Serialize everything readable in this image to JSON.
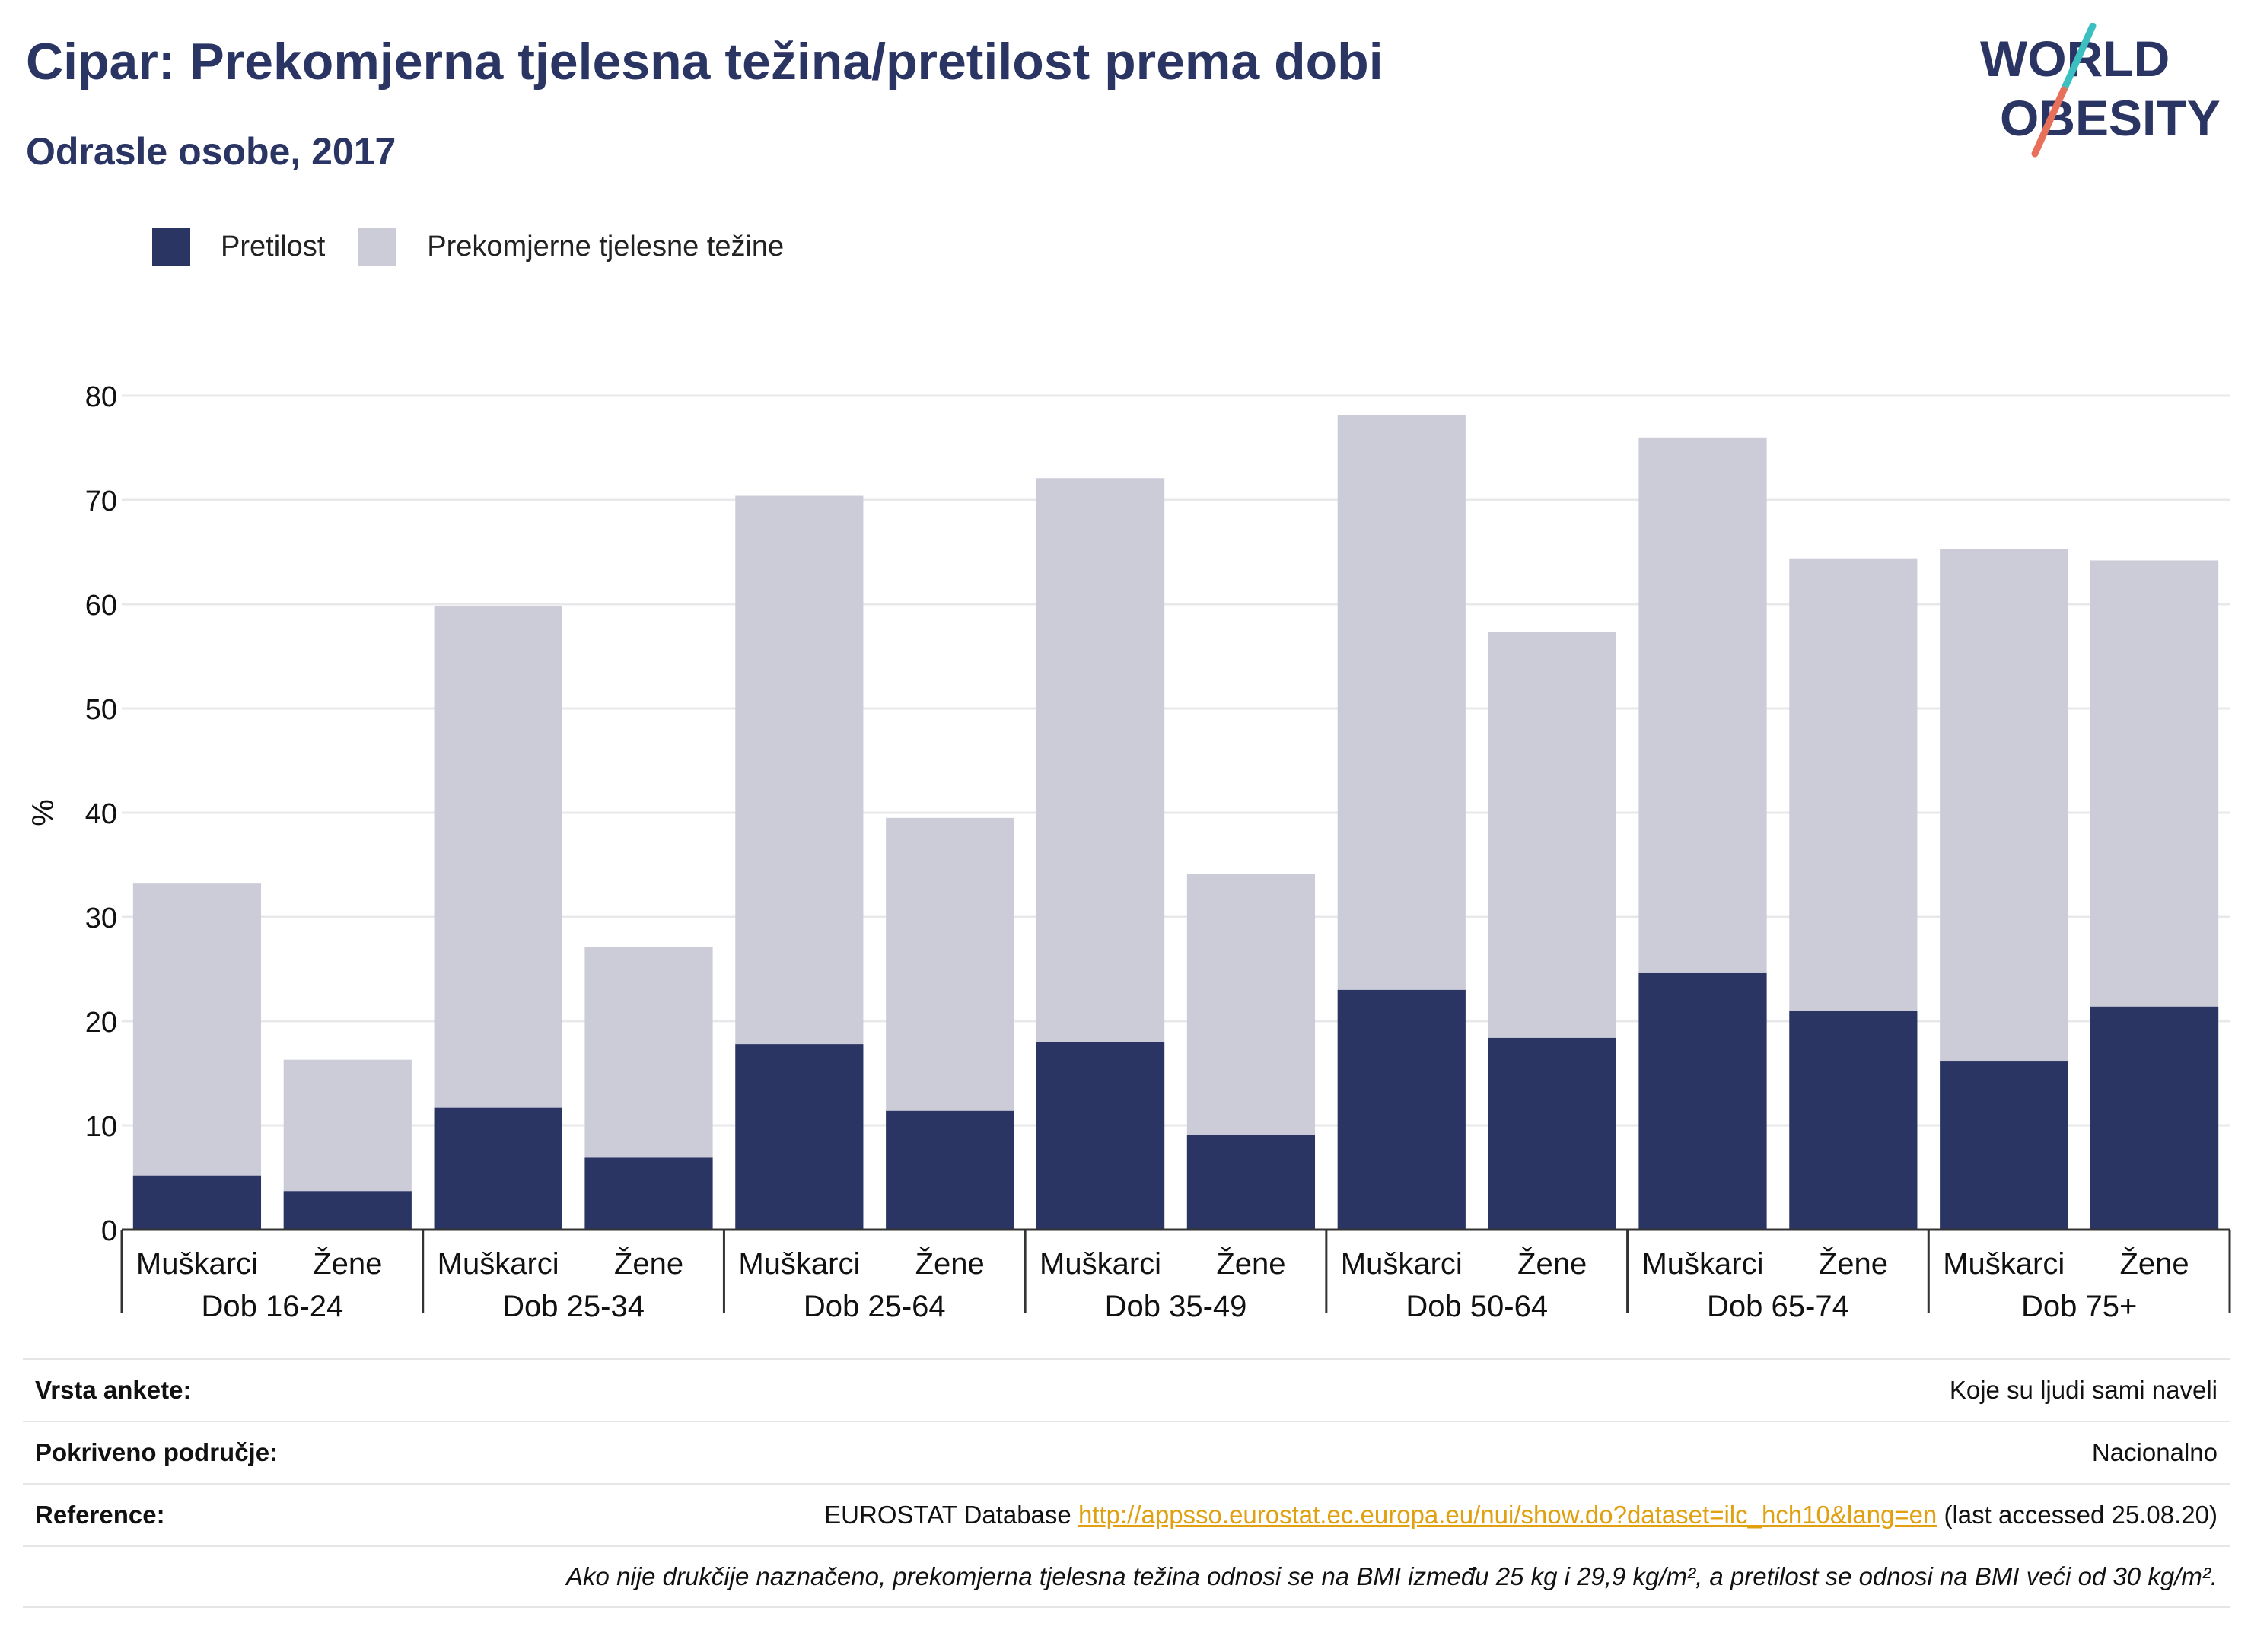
{
  "header": {
    "title": "Cipar: Prekomjerna tjelesna težina/pretilost prema dobi",
    "subtitle": "Odrasle osobe, 2017"
  },
  "logo": {
    "line1": "WORLD",
    "line2": "OBESITY"
  },
  "colors": {
    "obesity": "#2a3563",
    "overweight": "#cbccd8",
    "title": "#2b3563",
    "logo_slash_top": "#3bbfc0",
    "logo_slash_bottom": "#e8705a",
    "link": "#e0a010"
  },
  "chart_data": {
    "type": "bar",
    "stacked": "overlay",
    "ylabel": "%",
    "ylim": [
      0,
      80
    ],
    "yticks": [
      0,
      10,
      20,
      30,
      40,
      50,
      60,
      70,
      80
    ],
    "groups": [
      "Dob 16-24",
      "Dob 25-34",
      "Dob 25-64",
      "Dob 35-49",
      "Dob 50-64",
      "Dob 65-74",
      "Dob 75+"
    ],
    "sub_categories": [
      "Muškarci",
      "Žene"
    ],
    "series": [
      {
        "name": "Pretilost",
        "values": [
          5.2,
          3.7,
          11.7,
          6.9,
          17.8,
          11.4,
          18.0,
          9.1,
          23.0,
          18.4,
          24.6,
          21.0,
          16.2,
          21.4
        ]
      },
      {
        "name": "Prekomjerne tjelesne težine",
        "values": [
          33.2,
          16.3,
          59.8,
          27.1,
          70.4,
          39.5,
          72.1,
          34.1,
          78.1,
          57.3,
          76.0,
          64.4,
          65.3,
          64.2
        ]
      }
    ],
    "legend_position": "top-left",
    "grid": true
  },
  "info": {
    "survey_label": "Vrsta ankete:",
    "survey_value": "Koje su ljudi sami naveli",
    "area_label": "Pokriveno područje:",
    "area_value": "Nacionalno",
    "ref_label": "Reference:",
    "ref_prefix": "EUROSTAT Database ",
    "ref_link": "http://appsso.eurostat.ec.europa.eu/nui/show.do?dataset=ilc_hch10&lang=en",
    "ref_suffix": " (last accessed 25.08.20)",
    "note": "Ako nije drukčije naznačeno, prekomjerna tjelesna težina odnosi se na BMI između 25 kg i 29,9 kg/m², a pretilost se odnosi na BMI veći od 30 kg/m²."
  }
}
